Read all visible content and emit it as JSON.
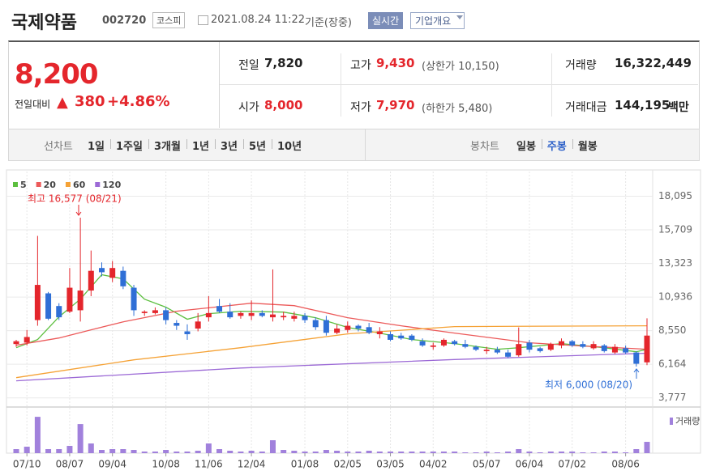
{
  "header": {
    "name": "국제약품",
    "code": "002720",
    "market": "코스피",
    "datetime": "2021.08.24 11:22",
    "basis": "기준(장중)",
    "realtime": "실시간",
    "company_info": "기업개요"
  },
  "quote": {
    "price": "8,200",
    "change_label": "전일대비",
    "change": "380",
    "change_pct": "+4.86%",
    "fields": [
      {
        "label": "전일",
        "value": "7,820",
        "color": "#222"
      },
      {
        "label": "고가",
        "value": "9,430",
        "note": "(상한가 10,150)",
        "color": "#e4262c"
      },
      {
        "label": "거래량",
        "value": "16,322,449",
        "color": "#222"
      },
      {
        "label": "시가",
        "value": "8,000",
        "color": "#e4262c"
      },
      {
        "label": "저가",
        "value": "7,970",
        "note": "(하한가 5,480)",
        "color": "#e4262c"
      },
      {
        "label": "거래대금",
        "value": "144,195",
        "unit": "백만",
        "color": "#222"
      }
    ]
  },
  "tabs": {
    "line_label": "선차트",
    "line": [
      "1일",
      "1주일",
      "3개월",
      "1년",
      "3년",
      "5년",
      "10년"
    ],
    "candle_label": "봉차트",
    "candle": [
      "일봉",
      "주봉",
      "월봉"
    ],
    "selected": "주봉"
  },
  "chart_data": {
    "type": "candlestick",
    "up_color": "#e4262c",
    "down_color": "#2f6fd6",
    "open": [
      7600,
      7700,
      9300,
      11200,
      10300,
      9900,
      10000,
      11400,
      13000,
      12300,
      12800,
      11600,
      9800,
      9800,
      10000,
      9100,
      8500,
      8700,
      9500,
      10300,
      9900,
      9600,
      9600,
      9800,
      9500,
      9500,
      9400,
      9600,
      9300,
      9300,
      8400,
      8600,
      8900,
      8800,
      8300,
      8300,
      8200,
      8200,
      7800,
      7400,
      7500,
      7800,
      7600,
      7400,
      7100,
      7200,
      7000,
      6800,
      7700,
      7300,
      7200,
      7500,
      7800,
      7600,
      7300,
      7500,
      7000,
      7300,
      7000,
      6300
    ],
    "high": [
      7900,
      8600,
      15280,
      11300,
      10500,
      13000,
      16577,
      14240,
      13400,
      13500,
      13100,
      11800,
      10000,
      10200,
      10200,
      9300,
      9000,
      9800,
      11000,
      10800,
      10500,
      9900,
      10700,
      10000,
      12900,
      9900,
      9900,
      9800,
      9500,
      9600,
      9000,
      9200,
      9000,
      9100,
      8800,
      8500,
      8400,
      8300,
      8000,
      7700,
      8000,
      7900,
      7900,
      7500,
      7400,
      7400,
      7200,
      8780,
      7900,
      7400,
      7700,
      8000,
      7900,
      7800,
      7800,
      7600,
      7600,
      7500,
      7100,
      9430
    ],
    "low": [
      7400,
      7500,
      8900,
      9300,
      9300,
      9800,
      9200,
      11000,
      12400,
      12000,
      11500,
      9600,
      9600,
      9700,
      9000,
      8600,
      7900,
      8500,
      9200,
      9800,
      9400,
      9400,
      9300,
      9500,
      9200,
      9300,
      9200,
      9100,
      8600,
      8200,
      8300,
      8400,
      8500,
      8300,
      8000,
      7800,
      7900,
      7800,
      7400,
      7200,
      7400,
      7500,
      7300,
      7100,
      6900,
      6900,
      6600,
      6700,
      7000,
      7000,
      7100,
      7300,
      7400,
      7300,
      7200,
      7000,
      6900,
      6900,
      6000,
      6100
    ],
    "close": [
      7800,
      8100,
      11800,
      9400,
      9500,
      11600,
      11400,
      12800,
      12700,
      13000,
      11700,
      10000,
      9900,
      10000,
      9300,
      8900,
      8300,
      9200,
      9800,
      9900,
      9500,
      9800,
      9800,
      9600,
      9700,
      9600,
      9600,
      9300,
      8800,
      8400,
      8700,
      8900,
      8700,
      8400,
      8500,
      7900,
      8000,
      7900,
      7500,
      7500,
      7900,
      7600,
      7400,
      7200,
      7200,
      7000,
      6700,
      7600,
      7200,
      7100,
      7600,
      7800,
      7500,
      7400,
      7600,
      7100,
      7400,
      7000,
      6200,
      8200
    ],
    "moving_averages": [
      {
        "name": "5",
        "color": "#5cbf3f",
        "x": [
          0,
          2,
          4,
          6,
          8,
          10,
          12,
          14,
          16,
          18,
          21,
          25,
          28,
          31,
          34,
          37,
          41,
          45,
          47,
          51,
          55,
          58,
          59
        ],
        "values": [
          7340,
          7920,
          9530,
          10790,
          12520,
          12230,
          10790,
          10220,
          9360,
          9760,
          9930,
          9870,
          9470,
          8780,
          8380,
          7920,
          7630,
          7230,
          7340,
          7630,
          7340,
          7050,
          7230
        ]
      },
      {
        "name": "20",
        "color": "#ec5a5a",
        "x": [
          0,
          4,
          7,
          10,
          15,
          22,
          26,
          31,
          36,
          41,
          48,
          53,
          59
        ],
        "values": [
          7515,
          8030,
          8610,
          9180,
          9930,
          10500,
          10330,
          9470,
          8895,
          8380,
          7690,
          7460,
          7230
        ]
      },
      {
        "name": "60",
        "color": "#f5a236",
        "x": [
          0,
          11,
          21,
          31,
          41,
          59
        ],
        "values": [
          5215,
          6480,
          7340,
          8320,
          8840,
          8895
        ]
      },
      {
        "name": "120",
        "color": "#9c6ad6",
        "x": [
          0,
          21,
          41,
          59
        ],
        "values": [
          4990,
          5900,
          6500,
          6950
        ]
      }
    ],
    "volume": {
      "name": "거래량",
      "color": "#a181dc",
      "ylim": [
        0,
        85000000
      ],
      "values": [
        8000000,
        12800000,
        72000000,
        8000000,
        8000000,
        14400000,
        57600000,
        19200000,
        6400000,
        8000000,
        8000000,
        6400000,
        3200000,
        3200000,
        6400000,
        3200000,
        3200000,
        4800000,
        19200000,
        8000000,
        4800000,
        3200000,
        4800000,
        3200000,
        25600000,
        6400000,
        4800000,
        3200000,
        3200000,
        6400000,
        4800000,
        3200000,
        3200000,
        4800000,
        3200000,
        3200000,
        3200000,
        3200000,
        3200000,
        3200000,
        3200000,
        3200000,
        1600000,
        1600000,
        3200000,
        1600000,
        3200000,
        8000000,
        3200000,
        1600000,
        3200000,
        3200000,
        3200000,
        1600000,
        1600000,
        3200000,
        3200000,
        1600000,
        8000000,
        22400000
      ]
    },
    "ylim": [
      3300,
      18700
    ],
    "yticks": [
      {
        "value": 3777,
        "label": "3,777"
      },
      {
        "value": 6164,
        "label": "6,164"
      },
      {
        "value": 8550,
        "label": "8,550"
      },
      {
        "value": 10936,
        "label": "10,936"
      },
      {
        "value": 13323,
        "label": "13,323"
      },
      {
        "value": 15709,
        "label": "15,709"
      },
      {
        "value": 18095,
        "label": "18,095"
      }
    ],
    "xticks": [
      {
        "value": 1,
        "label": "07/10"
      },
      {
        "value": 5,
        "label": "08/07"
      },
      {
        "value": 9,
        "label": "09/04"
      },
      {
        "value": 14,
        "label": "10/08"
      },
      {
        "value": 18,
        "label": "11/06"
      },
      {
        "value": 22,
        "label": "12/04"
      },
      {
        "value": 27,
        "label": "01/08"
      },
      {
        "value": 31,
        "label": "02/05"
      },
      {
        "value": 35,
        "label": "03/05"
      },
      {
        "value": 39,
        "label": "04/02"
      },
      {
        "value": 44,
        "label": "05/07"
      },
      {
        "value": 48,
        "label": "06/04"
      },
      {
        "value": 52,
        "label": "07/02"
      },
      {
        "value": 57,
        "label": "08/06"
      }
    ],
    "annotations": [
      "최고 16,577 (08/21)",
      "최저 6,000 (08/20)"
    ],
    "grid": true
  }
}
